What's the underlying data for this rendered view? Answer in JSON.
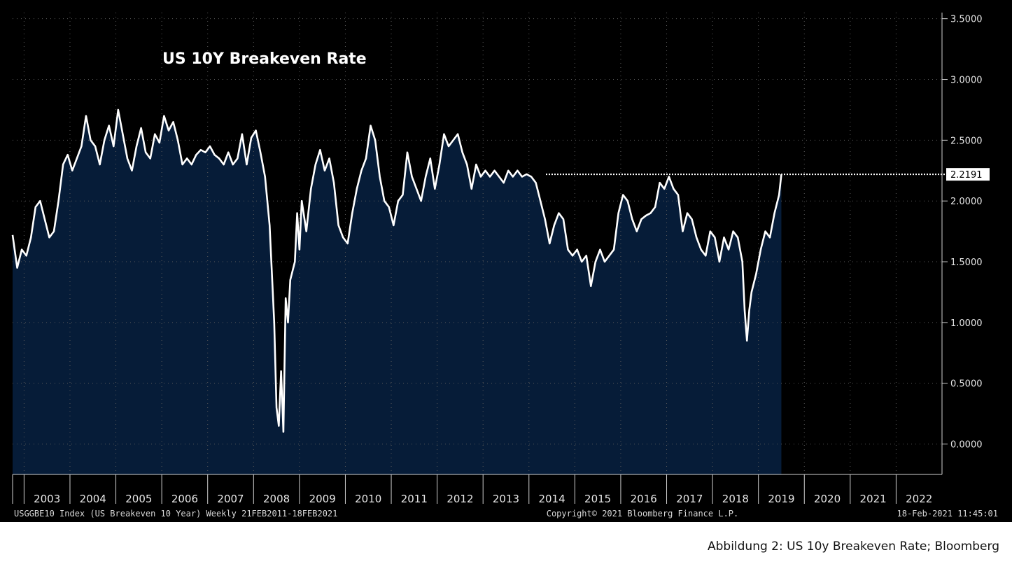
{
  "chart_data": {
    "type": "area",
    "title": "US 10Y Breakeven Rate",
    "series": [
      {
        "name": "USGGBE10 Index",
        "color": "#ffffff",
        "fill": "#061c38"
      }
    ],
    "x_start": 2002.75,
    "x_end": 2023.0,
    "x_step_weeks": true,
    "y_ticks": [
      "0.0000",
      "0.5000",
      "1.0000",
      "1.5000",
      "2.0000",
      "2.5000",
      "3.0000",
      "3.5000"
    ],
    "ylim": [
      -0.25,
      3.55
    ],
    "year_labels": [
      "2003",
      "2004",
      "2005",
      "2006",
      "2007",
      "2008",
      "2009",
      "2010",
      "2011",
      "2012",
      "2013",
      "2014",
      "2015",
      "2016",
      "2017",
      "2018",
      "2019",
      "2020",
      "2021",
      "2022"
    ],
    "last_value": 2.2191,
    "last_value_label": "2.2191",
    "footer_left": "USGGBE10 Index (US Breakeven 10 Year)  Weekly 21FEB2011-18FEB2021",
    "footer_center": "Copyright© 2021 Bloomberg Finance L.P.",
    "footer_right": "18-Feb-2021 11:45:01",
    "points": [
      [
        2002.75,
        1.72
      ],
      [
        2002.85,
        1.45
      ],
      [
        2002.95,
        1.6
      ],
      [
        2003.05,
        1.55
      ],
      [
        2003.15,
        1.7
      ],
      [
        2003.25,
        1.95
      ],
      [
        2003.35,
        2.0
      ],
      [
        2003.45,
        1.85
      ],
      [
        2003.55,
        1.7
      ],
      [
        2003.65,
        1.75
      ],
      [
        2003.75,
        2.0
      ],
      [
        2003.85,
        2.3
      ],
      [
        2003.95,
        2.38
      ],
      [
        2004.05,
        2.25
      ],
      [
        2004.15,
        2.35
      ],
      [
        2004.25,
        2.45
      ],
      [
        2004.35,
        2.7
      ],
      [
        2004.45,
        2.5
      ],
      [
        2004.55,
        2.45
      ],
      [
        2004.65,
        2.3
      ],
      [
        2004.75,
        2.5
      ],
      [
        2004.85,
        2.62
      ],
      [
        2004.95,
        2.45
      ],
      [
        2005.05,
        2.75
      ],
      [
        2005.15,
        2.55
      ],
      [
        2005.25,
        2.35
      ],
      [
        2005.35,
        2.25
      ],
      [
        2005.45,
        2.45
      ],
      [
        2005.55,
        2.6
      ],
      [
        2005.65,
        2.4
      ],
      [
        2005.75,
        2.35
      ],
      [
        2005.85,
        2.55
      ],
      [
        2005.95,
        2.48
      ],
      [
        2006.05,
        2.7
      ],
      [
        2006.15,
        2.58
      ],
      [
        2006.25,
        2.65
      ],
      [
        2006.35,
        2.5
      ],
      [
        2006.45,
        2.3
      ],
      [
        2006.55,
        2.35
      ],
      [
        2006.65,
        2.3
      ],
      [
        2006.75,
        2.38
      ],
      [
        2006.85,
        2.42
      ],
      [
        2006.95,
        2.4
      ],
      [
        2007.05,
        2.45
      ],
      [
        2007.15,
        2.38
      ],
      [
        2007.25,
        2.35
      ],
      [
        2007.35,
        2.3
      ],
      [
        2007.45,
        2.4
      ],
      [
        2007.55,
        2.3
      ],
      [
        2007.65,
        2.35
      ],
      [
        2007.75,
        2.55
      ],
      [
        2007.85,
        2.3
      ],
      [
        2007.95,
        2.52
      ],
      [
        2008.05,
        2.58
      ],
      [
        2008.15,
        2.4
      ],
      [
        2008.25,
        2.2
      ],
      [
        2008.35,
        1.8
      ],
      [
        2008.45,
        1.0
      ],
      [
        2008.5,
        0.3
      ],
      [
        2008.55,
        0.15
      ],
      [
        2008.6,
        0.6
      ],
      [
        2008.65,
        0.1
      ],
      [
        2008.7,
        1.2
      ],
      [
        2008.75,
        1.0
      ],
      [
        2008.8,
        1.35
      ],
      [
        2008.9,
        1.5
      ],
      [
        2008.95,
        1.9
      ],
      [
        2009.0,
        1.6
      ],
      [
        2009.05,
        2.0
      ],
      [
        2009.15,
        1.75
      ],
      [
        2009.25,
        2.1
      ],
      [
        2009.35,
        2.3
      ],
      [
        2009.45,
        2.42
      ],
      [
        2009.55,
        2.25
      ],
      [
        2009.65,
        2.35
      ],
      [
        2009.75,
        2.15
      ],
      [
        2009.85,
        1.8
      ],
      [
        2009.95,
        1.7
      ],
      [
        2010.05,
        1.65
      ],
      [
        2010.15,
        1.9
      ],
      [
        2010.25,
        2.1
      ],
      [
        2010.35,
        2.25
      ],
      [
        2010.45,
        2.35
      ],
      [
        2010.55,
        2.62
      ],
      [
        2010.65,
        2.5
      ],
      [
        2010.75,
        2.2
      ],
      [
        2010.85,
        2.0
      ],
      [
        2010.95,
        1.95
      ],
      [
        2011.05,
        1.8
      ],
      [
        2011.15,
        2.0
      ],
      [
        2011.25,
        2.05
      ],
      [
        2011.35,
        2.4
      ],
      [
        2011.45,
        2.2
      ],
      [
        2011.55,
        2.1
      ],
      [
        2011.65,
        2.0
      ],
      [
        2011.75,
        2.2
      ],
      [
        2011.85,
        2.35
      ],
      [
        2011.95,
        2.1
      ],
      [
        2012.05,
        2.3
      ],
      [
        2012.15,
        2.55
      ],
      [
        2012.25,
        2.45
      ],
      [
        2012.35,
        2.5
      ],
      [
        2012.45,
        2.55
      ],
      [
        2012.55,
        2.4
      ],
      [
        2012.65,
        2.3
      ],
      [
        2012.75,
        2.1
      ],
      [
        2012.85,
        2.3
      ],
      [
        2012.95,
        2.2
      ],
      [
        2013.05,
        2.25
      ],
      [
        2013.15,
        2.2
      ],
      [
        2013.25,
        2.25
      ],
      [
        2013.35,
        2.2
      ],
      [
        2013.45,
        2.15
      ],
      [
        2013.55,
        2.25
      ],
      [
        2013.65,
        2.2
      ],
      [
        2013.75,
        2.25
      ],
      [
        2013.85,
        2.2
      ],
      [
        2013.95,
        2.22
      ],
      [
        2014.05,
        2.2
      ],
      [
        2014.15,
        2.15
      ],
      [
        2014.25,
        2.0
      ],
      [
        2014.35,
        1.85
      ],
      [
        2014.45,
        1.65
      ],
      [
        2014.55,
        1.8
      ],
      [
        2014.65,
        1.9
      ],
      [
        2014.75,
        1.85
      ],
      [
        2014.85,
        1.6
      ],
      [
        2014.95,
        1.55
      ],
      [
        2015.05,
        1.6
      ],
      [
        2015.15,
        1.5
      ],
      [
        2015.25,
        1.55
      ],
      [
        2015.35,
        1.3
      ],
      [
        2015.45,
        1.5
      ],
      [
        2015.55,
        1.6
      ],
      [
        2015.65,
        1.5
      ],
      [
        2015.75,
        1.55
      ],
      [
        2015.85,
        1.6
      ],
      [
        2015.95,
        1.9
      ],
      [
        2016.05,
        2.05
      ],
      [
        2016.15,
        2.0
      ],
      [
        2016.25,
        1.85
      ],
      [
        2016.35,
        1.75
      ],
      [
        2016.45,
        1.85
      ],
      [
        2016.55,
        1.88
      ],
      [
        2016.65,
        1.9
      ],
      [
        2016.75,
        1.95
      ],
      [
        2016.85,
        2.15
      ],
      [
        2016.95,
        2.1
      ],
      [
        2017.05,
        2.2
      ],
      [
        2017.15,
        2.1
      ],
      [
        2017.25,
        2.05
      ],
      [
        2017.35,
        1.75
      ],
      [
        2017.45,
        1.9
      ],
      [
        2017.55,
        1.85
      ],
      [
        2017.65,
        1.7
      ],
      [
        2017.75,
        1.6
      ],
      [
        2017.85,
        1.55
      ],
      [
        2017.95,
        1.75
      ],
      [
        2018.05,
        1.7
      ],
      [
        2018.15,
        1.5
      ],
      [
        2018.25,
        1.7
      ],
      [
        2018.35,
        1.6
      ],
      [
        2018.45,
        1.75
      ],
      [
        2018.55,
        1.7
      ],
      [
        2018.65,
        1.5
      ],
      [
        2018.7,
        1.1
      ],
      [
        2018.75,
        0.85
      ],
      [
        2018.8,
        1.1
      ],
      [
        2018.85,
        1.25
      ],
      [
        2018.95,
        1.4
      ],
      [
        2019.05,
        1.6
      ],
      [
        2019.15,
        1.75
      ],
      [
        2019.25,
        1.7
      ],
      [
        2019.35,
        1.9
      ],
      [
        2019.45,
        2.05
      ],
      [
        2019.5,
        2.2191
      ]
    ]
  }
}
